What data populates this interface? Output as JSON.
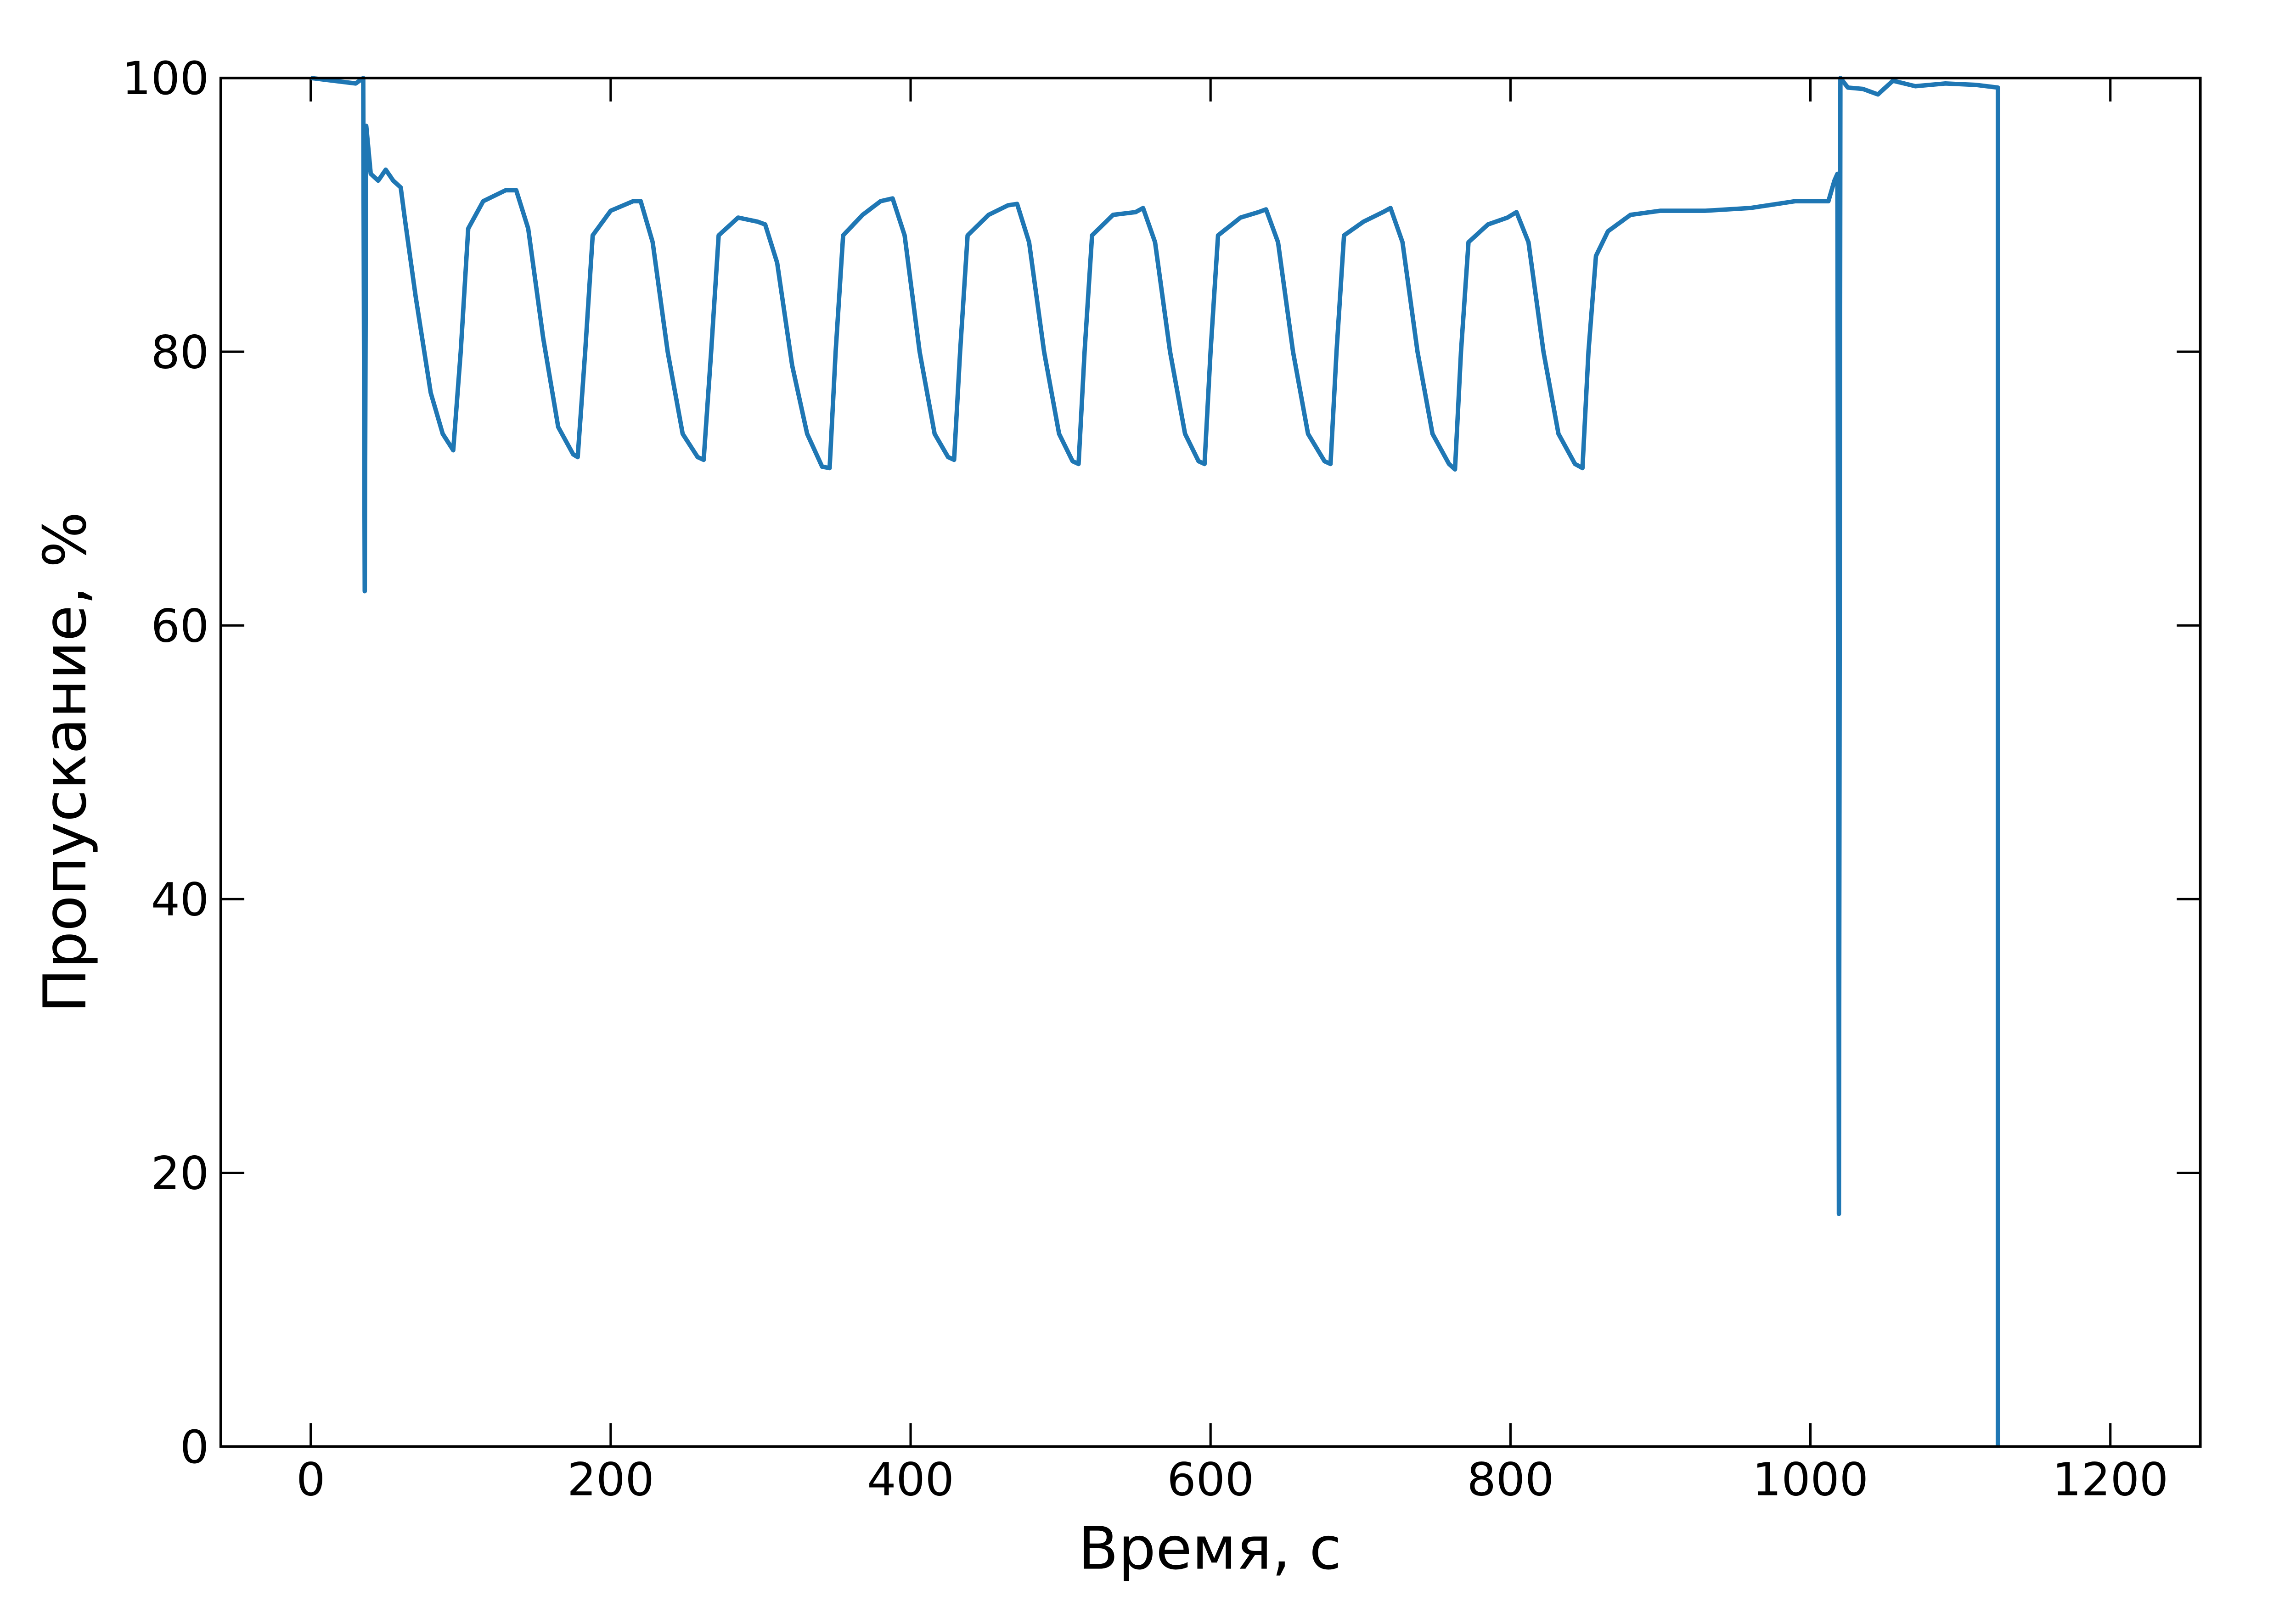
{
  "chart_data": {
    "type": "line",
    "x_label": "Время, с",
    "y_label": "Пропускание, %",
    "x": [
      0,
      15,
      30,
      35,
      36,
      37,
      40,
      45,
      50,
      55,
      60,
      63,
      70,
      80,
      88,
      95,
      100,
      105,
      115,
      130,
      137,
      145,
      155,
      165,
      175,
      178,
      183,
      188,
      200,
      215,
      220,
      228,
      238,
      248,
      258,
      262,
      267,
      272,
      285,
      298,
      303,
      311,
      321,
      331,
      341,
      346,
      350,
      355,
      368,
      380,
      388,
      396,
      406,
      416,
      425,
      429,
      433,
      438,
      452,
      465,
      471,
      479,
      489,
      499,
      508,
      512,
      516,
      521,
      535,
      550,
      555,
      563,
      573,
      583,
      592,
      596,
      600,
      605,
      620,
      632,
      637,
      645,
      655,
      665,
      676,
      680,
      684,
      689,
      702,
      715,
      720,
      728,
      738,
      748,
      759,
      763,
      767,
      772,
      785,
      798,
      804,
      812,
      822,
      832,
      843,
      848,
      852,
      857,
      865,
      880,
      900,
      930,
      960,
      990,
      1012,
      1016,
      1018,
      1019,
      1020,
      1025,
      1035,
      1045,
      1055,
      1070,
      1090,
      1110,
      1125,
      1125
    ],
    "series": [
      {
        "name": "Пропускание",
        "color": "#1f77b4",
        "values": [
          100,
          99.8,
          99.6,
          100,
          62.5,
          96.5,
          93,
          92.5,
          93.3,
          92.5,
          92,
          89.5,
          84,
          77,
          74,
          72.8,
          80,
          89,
          91,
          91.8,
          91.8,
          89,
          81,
          74.5,
          72.5,
          72.3,
          80,
          88.5,
          90.3,
          91,
          91,
          88,
          80,
          74,
          72.3,
          72.1,
          80,
          88.5,
          89.8,
          89.5,
          89.3,
          86.5,
          79,
          74,
          71.6,
          71.5,
          80,
          88.5,
          90,
          91,
          91.2,
          88.5,
          80,
          74,
          72.3,
          72.1,
          80,
          88.5,
          90,
          90.7,
          90.8,
          88,
          80,
          74,
          72,
          71.8,
          80,
          88.5,
          90,
          90.2,
          90.5,
          88,
          80,
          74,
          72,
          71.8,
          80,
          88.5,
          89.8,
          90.2,
          90.4,
          88,
          80,
          74,
          72,
          71.8,
          80,
          88.5,
          89.5,
          90.2,
          90.5,
          88,
          80,
          74,
          71.8,
          71.4,
          80,
          88,
          89.3,
          89.8,
          90.2,
          88,
          80,
          74,
          71.8,
          71.5,
          80,
          87,
          88.8,
          90,
          90.3,
          90.3,
          90.5,
          91,
          91,
          92.5,
          93,
          17,
          100,
          99.3,
          99.2,
          98.8,
          99.8,
          99.4,
          99.6,
          99.5,
          99.3,
          0
        ]
      }
    ],
    "xlim": [
      -60,
      1260
    ],
    "ylim": [
      0,
      100
    ],
    "xticks": [
      0,
      200,
      400,
      600,
      800,
      1000,
      1200
    ],
    "yticks": [
      0,
      20,
      40,
      60,
      80,
      100
    ]
  }
}
